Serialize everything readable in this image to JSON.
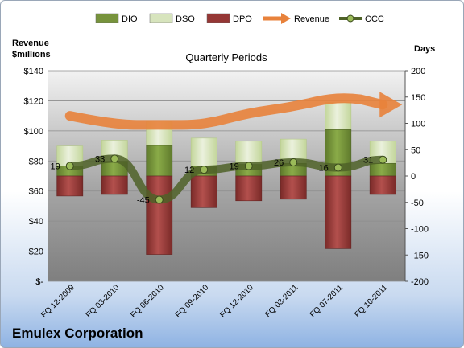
{
  "chart_data": {
    "type": "bar",
    "title": "Quarterly Periods",
    "company": "Emulex Corporation",
    "left_axis_title": [
      "Revenue",
      "$millions"
    ],
    "right_axis_title": "Days",
    "left_ticks": [
      "$140",
      "$120",
      "$100",
      "$80",
      "$60",
      "$40",
      "$20",
      "$-"
    ],
    "right_ticks": [
      "200",
      "150",
      "100",
      "50",
      "0",
      "-50",
      "-100",
      "-150",
      "-200"
    ],
    "left_ylim": [
      0,
      140
    ],
    "right_ylim": [
      -200,
      200
    ],
    "categories": [
      "FQ 12-2009",
      "FQ 03-2010",
      "FQ 06-2010",
      "FQ 09-2010",
      "FQ 12-2010",
      "FQ 03-2011",
      "FQ 07-2011",
      "FQ 10-2011"
    ],
    "legend": [
      {
        "name": "DIO",
        "color": "#77933c",
        "kind": "bar"
      },
      {
        "name": "DSO",
        "color": "#d7e4bd",
        "kind": "bar"
      },
      {
        "name": "DPO",
        "color": "#953735",
        "kind": "bar"
      },
      {
        "name": "Revenue",
        "color": "#e8823b",
        "kind": "arrow"
      },
      {
        "name": "CCC",
        "color": "#4f6228",
        "kind": "line"
      }
    ],
    "series": [
      {
        "name": "DIO",
        "axis": "days",
        "values": [
          19,
          28,
          58,
          19,
          22,
          24,
          88,
          24
        ]
      },
      {
        "name": "DSO",
        "axis": "days",
        "values": [
          38,
          40,
          46,
          53,
          44,
          46,
          52,
          42
        ]
      },
      {
        "name": "DPO",
        "axis": "days",
        "values": [
          -38,
          -35,
          -149,
          -60,
          -47,
          -44,
          -138,
          -35
        ]
      },
      {
        "name": "Revenue",
        "axis": "revenue",
        "values": [
          110,
          104,
          104,
          104,
          112,
          116,
          123,
          119
        ]
      },
      {
        "name": "CCC",
        "axis": "days",
        "values": [
          19,
          33,
          -45,
          12,
          19,
          26,
          16,
          31
        ],
        "labels": [
          "19",
          "33",
          "-45",
          "12",
          "19",
          "26",
          "16",
          "31"
        ]
      }
    ],
    "grid": true,
    "legend_position": "top"
  }
}
